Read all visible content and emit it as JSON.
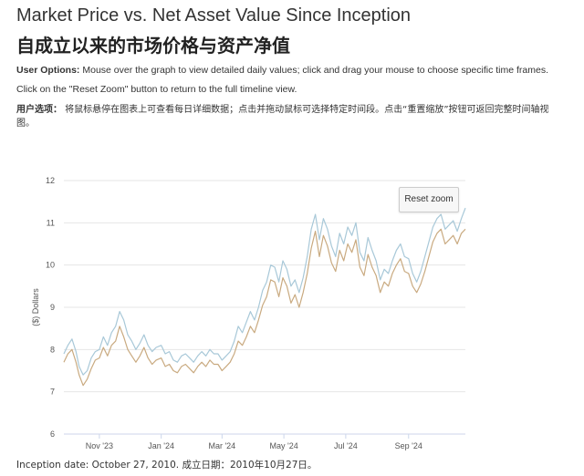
{
  "page": {
    "title_en": "Market Price vs. Net Asset Value Since Inception",
    "title_zh": "自成立以来的市场价格与资产净值",
    "user_options_label": "User Options:",
    "user_options_text": " Mouse over the graph to view detailed daily values; click and drag your mouse to choose specific time frames.",
    "reset_instruction": "Click on the \"Reset Zoom\" button to return to the full timeline view.",
    "user_options_zh_label": "用户选项：",
    "user_options_zh_text": " 将鼠标悬停在图表上可查看每日详细数据；点击并拖动鼠标可选择特定时间段。点击“重置缩放”按钮可返回完整时间轴视图。",
    "reset_button_label": "Reset zoom",
    "footer": "Inception date: October 27, 2010. 成立日期：2010年10月27日。"
  },
  "chart_data": {
    "type": "line",
    "ylabel": "($) Dollars",
    "ylim": [
      6,
      12
    ],
    "yticks": [
      6,
      7,
      8,
      9,
      10,
      11,
      12
    ],
    "xlim": [
      "2023-09-27",
      "2024-10-27"
    ],
    "xticks": [
      {
        "label": "Nov '23",
        "date": "2023-11-01"
      },
      {
        "label": "Jan '24",
        "date": "2024-01-01"
      },
      {
        "label": "Mar '24",
        "date": "2024-03-01"
      },
      {
        "label": "May '24",
        "date": "2024-05-01"
      },
      {
        "label": "Jul '24",
        "date": "2024-07-01"
      },
      {
        "label": "Sep '24",
        "date": "2024-09-01"
      }
    ],
    "grid": true,
    "series": [
      {
        "color": "#a8c8d8",
        "points": [
          [
            "2023-09-27",
            7.9
          ],
          [
            "2023-10-01",
            8.1
          ],
          [
            "2023-10-05",
            8.25
          ],
          [
            "2023-10-09",
            7.95
          ],
          [
            "2023-10-12",
            7.6
          ],
          [
            "2023-10-16",
            7.4
          ],
          [
            "2023-10-20",
            7.5
          ],
          [
            "2023-10-24",
            7.8
          ],
          [
            "2023-10-28",
            7.95
          ],
          [
            "2023-11-01",
            8.0
          ],
          [
            "2023-11-05",
            8.3
          ],
          [
            "2023-11-09",
            8.1
          ],
          [
            "2023-11-13",
            8.4
          ],
          [
            "2023-11-17",
            8.55
          ],
          [
            "2023-11-21",
            8.9
          ],
          [
            "2023-11-25",
            8.7
          ],
          [
            "2023-11-29",
            8.35
          ],
          [
            "2023-12-03",
            8.2
          ],
          [
            "2023-12-07",
            8.0
          ],
          [
            "2023-12-11",
            8.15
          ],
          [
            "2023-12-15",
            8.35
          ],
          [
            "2023-12-19",
            8.1
          ],
          [
            "2023-12-23",
            7.95
          ],
          [
            "2023-12-27",
            8.05
          ],
          [
            "2024-01-01",
            8.1
          ],
          [
            "2024-01-05",
            7.9
          ],
          [
            "2024-01-09",
            7.95
          ],
          [
            "2024-01-13",
            7.75
          ],
          [
            "2024-01-17",
            7.7
          ],
          [
            "2024-01-21",
            7.85
          ],
          [
            "2024-01-25",
            7.9
          ],
          [
            "2024-01-29",
            7.8
          ],
          [
            "2024-02-02",
            7.7
          ],
          [
            "2024-02-06",
            7.85
          ],
          [
            "2024-02-10",
            7.95
          ],
          [
            "2024-02-14",
            7.85
          ],
          [
            "2024-02-18",
            8.0
          ],
          [
            "2024-02-22",
            7.9
          ],
          [
            "2024-02-26",
            7.9
          ],
          [
            "2024-03-01",
            7.75
          ],
          [
            "2024-03-05",
            7.85
          ],
          [
            "2024-03-09",
            7.95
          ],
          [
            "2024-03-13",
            8.2
          ],
          [
            "2024-03-17",
            8.55
          ],
          [
            "2024-03-21",
            8.4
          ],
          [
            "2024-03-25",
            8.65
          ],
          [
            "2024-03-29",
            8.9
          ],
          [
            "2024-04-02",
            8.7
          ],
          [
            "2024-04-06",
            9.0
          ],
          [
            "2024-04-10",
            9.4
          ],
          [
            "2024-04-14",
            9.6
          ],
          [
            "2024-04-18",
            10.0
          ],
          [
            "2024-04-22",
            9.95
          ],
          [
            "2024-04-26",
            9.6
          ],
          [
            "2024-04-30",
            10.1
          ],
          [
            "2024-05-04",
            9.9
          ],
          [
            "2024-05-08",
            9.5
          ],
          [
            "2024-05-12",
            9.65
          ],
          [
            "2024-05-16",
            9.35
          ],
          [
            "2024-05-20",
            9.7
          ],
          [
            "2024-05-24",
            10.2
          ],
          [
            "2024-05-28",
            10.85
          ],
          [
            "2024-06-01",
            11.2
          ],
          [
            "2024-06-05",
            10.6
          ],
          [
            "2024-06-09",
            11.1
          ],
          [
            "2024-06-13",
            10.85
          ],
          [
            "2024-06-17",
            10.45
          ],
          [
            "2024-06-21",
            10.2
          ],
          [
            "2024-06-25",
            10.75
          ],
          [
            "2024-06-29",
            10.5
          ],
          [
            "2024-07-03",
            10.9
          ],
          [
            "2024-07-07",
            10.7
          ],
          [
            "2024-07-11",
            11.0
          ],
          [
            "2024-07-15",
            10.3
          ],
          [
            "2024-07-19",
            10.1
          ],
          [
            "2024-07-23",
            10.65
          ],
          [
            "2024-07-27",
            10.35
          ],
          [
            "2024-07-31",
            10.1
          ],
          [
            "2024-08-04",
            9.65
          ],
          [
            "2024-08-08",
            9.9
          ],
          [
            "2024-08-12",
            9.8
          ],
          [
            "2024-08-16",
            10.1
          ],
          [
            "2024-08-20",
            10.35
          ],
          [
            "2024-08-24",
            10.5
          ],
          [
            "2024-08-28",
            10.2
          ],
          [
            "2024-09-01",
            10.15
          ],
          [
            "2024-09-05",
            9.8
          ],
          [
            "2024-09-09",
            9.6
          ],
          [
            "2024-09-13",
            9.85
          ],
          [
            "2024-09-17",
            10.2
          ],
          [
            "2024-09-21",
            10.55
          ],
          [
            "2024-09-25",
            10.9
          ],
          [
            "2024-09-29",
            11.1
          ],
          [
            "2024-10-03",
            11.2
          ],
          [
            "2024-10-07",
            10.85
          ],
          [
            "2024-10-11",
            10.95
          ],
          [
            "2024-10-15",
            11.05
          ],
          [
            "2024-10-19",
            10.8
          ],
          [
            "2024-10-23",
            11.1
          ],
          [
            "2024-10-27",
            11.35
          ]
        ]
      },
      {
        "color": "#c9aa80",
        "points": [
          [
            "2023-09-27",
            7.7
          ],
          [
            "2023-10-01",
            7.9
          ],
          [
            "2023-10-05",
            8.0
          ],
          [
            "2023-10-09",
            7.7
          ],
          [
            "2023-10-12",
            7.4
          ],
          [
            "2023-10-16",
            7.15
          ],
          [
            "2023-10-20",
            7.3
          ],
          [
            "2023-10-24",
            7.55
          ],
          [
            "2023-10-28",
            7.75
          ],
          [
            "2023-11-01",
            7.8
          ],
          [
            "2023-11-05",
            8.05
          ],
          [
            "2023-11-09",
            7.85
          ],
          [
            "2023-11-13",
            8.1
          ],
          [
            "2023-11-17",
            8.2
          ],
          [
            "2023-11-21",
            8.55
          ],
          [
            "2023-11-25",
            8.3
          ],
          [
            "2023-11-29",
            8.0
          ],
          [
            "2023-12-03",
            7.85
          ],
          [
            "2023-12-07",
            7.7
          ],
          [
            "2023-12-11",
            7.85
          ],
          [
            "2023-12-15",
            8.05
          ],
          [
            "2023-12-19",
            7.8
          ],
          [
            "2023-12-23",
            7.65
          ],
          [
            "2023-12-27",
            7.75
          ],
          [
            "2024-01-01",
            7.8
          ],
          [
            "2024-01-05",
            7.6
          ],
          [
            "2024-01-09",
            7.65
          ],
          [
            "2024-01-13",
            7.5
          ],
          [
            "2024-01-17",
            7.45
          ],
          [
            "2024-01-21",
            7.6
          ],
          [
            "2024-01-25",
            7.65
          ],
          [
            "2024-01-29",
            7.55
          ],
          [
            "2024-02-02",
            7.45
          ],
          [
            "2024-02-06",
            7.6
          ],
          [
            "2024-02-10",
            7.7
          ],
          [
            "2024-02-14",
            7.6
          ],
          [
            "2024-02-18",
            7.75
          ],
          [
            "2024-02-22",
            7.65
          ],
          [
            "2024-02-26",
            7.65
          ],
          [
            "2024-03-01",
            7.5
          ],
          [
            "2024-03-05",
            7.6
          ],
          [
            "2024-03-09",
            7.7
          ],
          [
            "2024-03-13",
            7.9
          ],
          [
            "2024-03-17",
            8.2
          ],
          [
            "2024-03-21",
            8.1
          ],
          [
            "2024-03-25",
            8.3
          ],
          [
            "2024-03-29",
            8.55
          ],
          [
            "2024-04-02",
            8.4
          ],
          [
            "2024-04-06",
            8.7
          ],
          [
            "2024-04-10",
            9.05
          ],
          [
            "2024-04-14",
            9.25
          ],
          [
            "2024-04-18",
            9.65
          ],
          [
            "2024-04-22",
            9.6
          ],
          [
            "2024-04-26",
            9.25
          ],
          [
            "2024-04-30",
            9.7
          ],
          [
            "2024-05-04",
            9.5
          ],
          [
            "2024-05-08",
            9.1
          ],
          [
            "2024-05-12",
            9.3
          ],
          [
            "2024-05-16",
            9.0
          ],
          [
            "2024-05-20",
            9.35
          ],
          [
            "2024-05-24",
            9.8
          ],
          [
            "2024-05-28",
            10.4
          ],
          [
            "2024-06-01",
            10.8
          ],
          [
            "2024-06-05",
            10.2
          ],
          [
            "2024-06-09",
            10.7
          ],
          [
            "2024-06-13",
            10.45
          ],
          [
            "2024-06-17",
            10.05
          ],
          [
            "2024-06-21",
            9.85
          ],
          [
            "2024-06-25",
            10.35
          ],
          [
            "2024-06-29",
            10.1
          ],
          [
            "2024-07-03",
            10.5
          ],
          [
            "2024-07-07",
            10.3
          ],
          [
            "2024-07-11",
            10.6
          ],
          [
            "2024-07-15",
            9.95
          ],
          [
            "2024-07-19",
            9.75
          ],
          [
            "2024-07-23",
            10.25
          ],
          [
            "2024-07-27",
            9.95
          ],
          [
            "2024-07-31",
            9.75
          ],
          [
            "2024-08-04",
            9.35
          ],
          [
            "2024-08-08",
            9.6
          ],
          [
            "2024-08-12",
            9.5
          ],
          [
            "2024-08-16",
            9.8
          ],
          [
            "2024-08-20",
            10.0
          ],
          [
            "2024-08-24",
            10.15
          ],
          [
            "2024-08-28",
            9.85
          ],
          [
            "2024-09-01",
            9.8
          ],
          [
            "2024-09-05",
            9.5
          ],
          [
            "2024-09-09",
            9.35
          ],
          [
            "2024-09-13",
            9.55
          ],
          [
            "2024-09-17",
            9.85
          ],
          [
            "2024-09-21",
            10.2
          ],
          [
            "2024-09-25",
            10.55
          ],
          [
            "2024-09-29",
            10.75
          ],
          [
            "2024-10-03",
            10.85
          ],
          [
            "2024-10-07",
            10.5
          ],
          [
            "2024-10-11",
            10.6
          ],
          [
            "2024-10-15",
            10.7
          ],
          [
            "2024-10-19",
            10.5
          ],
          [
            "2024-10-23",
            10.75
          ],
          [
            "2024-10-27",
            10.85
          ]
        ]
      }
    ]
  }
}
